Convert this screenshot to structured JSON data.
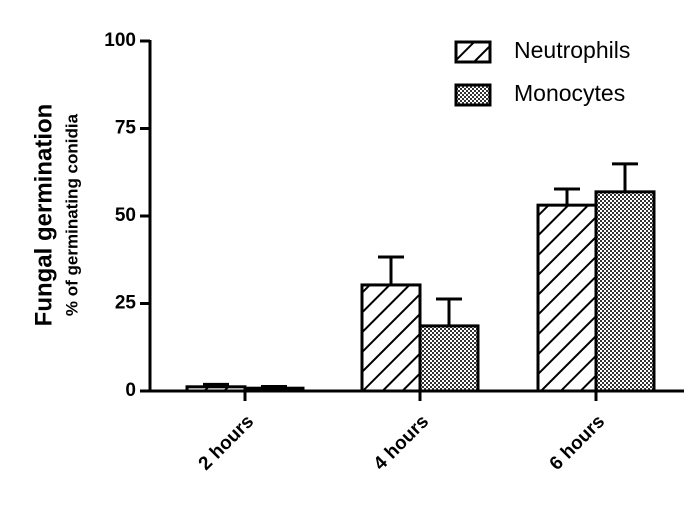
{
  "chart_data": {
    "type": "bar",
    "ylabel": "Fungal germination",
    "ylabel_sub": "% of germinating conidia",
    "categories": [
      "2 hours",
      "4 hours",
      "6 hours"
    ],
    "series": [
      {
        "name": "Neutrophils",
        "color": "#000000",
        "pattern": "diagonal",
        "values": [
          1.2,
          30.3,
          53.1
        ],
        "errors": [
          0.7,
          8.0,
          4.6
        ]
      },
      {
        "name": "Monocytes",
        "color": "#000000",
        "pattern": "checker",
        "values": [
          0.8,
          18.6,
          56.9
        ],
        "errors": [
          0.5,
          7.7,
          8.0
        ]
      }
    ],
    "ylim": [
      0,
      100
    ],
    "yticks": [
      0,
      25,
      50,
      75,
      100
    ],
    "legend": "upper right"
  }
}
